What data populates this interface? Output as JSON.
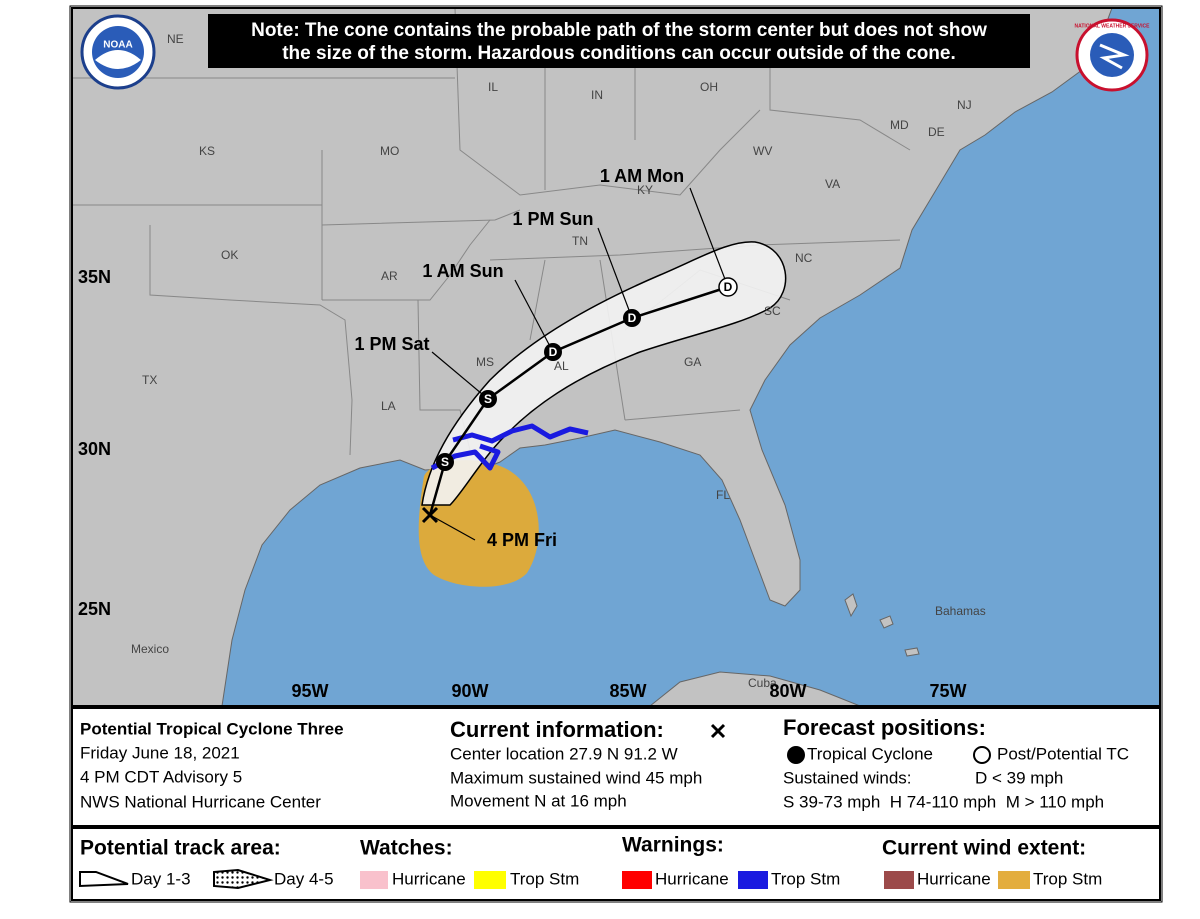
{
  "note": {
    "line1": "Note: The cone contains the probable path of the storm center but does not show",
    "line2": "the size of the storm. Hazardous conditions can occur outside of the cone."
  },
  "logos": {
    "noaa": "NOAA",
    "nws": "NATIONAL WEATHER SERVICE"
  },
  "map": {
    "places": [
      "NE",
      "IL",
      "IN",
      "OH",
      "NJ",
      "MD",
      "DE",
      "KS",
      "MO",
      "WV",
      "VA",
      "KY",
      "TN",
      "NC",
      "OK",
      "AR",
      "SC",
      "MS",
      "AL",
      "GA",
      "TX",
      "LA",
      "FL",
      "Mexico",
      "Bahamas",
      "Cuba"
    ],
    "latitudes": [
      "35N",
      "30N",
      "25N"
    ],
    "longitudes": [
      "95W",
      "90W",
      "85W",
      "80W",
      "75W"
    ],
    "forecast_points": [
      "S",
      "S",
      "D",
      "D",
      "D"
    ],
    "time_labels": [
      "4 PM Fri",
      "1 PM Sat",
      "1 AM Sun",
      "1 PM Sun",
      "1 AM Mon"
    ]
  },
  "info": {
    "storm": {
      "name": "Potential Tropical Cyclone Three",
      "date": "Friday June 18, 2021",
      "advisory": "4 PM CDT Advisory 5",
      "center": "NWS National Hurricane Center"
    },
    "current": {
      "heading": "Current information:",
      "location": "Center location 27.9 N 91.2 W",
      "wind": "Maximum sustained wind 45 mph",
      "movement": "Movement N at 16 mph"
    },
    "forecast": {
      "heading": "Forecast positions:",
      "tc": "Tropical Cyclone",
      "post": "Post/Potential TC",
      "sustained": "Sustained winds:",
      "d": "D < 39 mph",
      "scale": "S 39-73 mph  H 74-110 mph  M > 110 mph"
    }
  },
  "legend": {
    "track": {
      "heading": "Potential track area:",
      "day13": "Day 1-3",
      "day45": "Day 4-5"
    },
    "watches": {
      "heading": "Watches:",
      "hurricane": "Hurricane",
      "tropstm": "Trop Stm"
    },
    "warnings": {
      "heading": "Warnings:",
      "hurricane": "Hurricane",
      "tropstm": "Trop Stm"
    },
    "wind": {
      "heading": "Current wind extent:",
      "hurricane": "Hurricane",
      "tropstm": "Trop Stm"
    }
  }
}
